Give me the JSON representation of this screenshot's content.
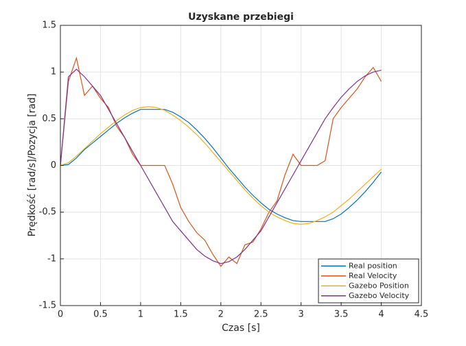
{
  "chart_data": {
    "type": "line",
    "title": "Uzyskane przebiegi",
    "xlabel": "Czas [s]",
    "ylabel": "Prędkość [rad/s]/Pozycja [rad]",
    "x": [
      0,
      0.1,
      0.2,
      0.3,
      0.4,
      0.5,
      0.6,
      0.7,
      0.8,
      0.9,
      1,
      1.1,
      1.2,
      1.3,
      1.4,
      1.5,
      1.6,
      1.7,
      1.8,
      1.9,
      2,
      2.1,
      2.2,
      2.3,
      2.4,
      2.5,
      2.6,
      2.7,
      2.8,
      2.9,
      3,
      3.1,
      3.2,
      3.3,
      3.4,
      3.5,
      3.6,
      3.7,
      3.8,
      3.9,
      4
    ],
    "series": [
      {
        "name": "Real position",
        "color": "#0072bd",
        "values": [
          0,
          0.01,
          0.08,
          0.17,
          0.24,
          0.31,
          0.38,
          0.45,
          0.51,
          0.56,
          0.6,
          0.6,
          0.6,
          0.6,
          0.57,
          0.52,
          0.46,
          0.38,
          0.29,
          0.19,
          0.08,
          -0.03,
          -0.13,
          -0.23,
          -0.32,
          -0.4,
          -0.47,
          -0.52,
          -0.56,
          -0.59,
          -0.6,
          -0.6,
          -0.6,
          -0.6,
          -0.57,
          -0.52,
          -0.45,
          -0.37,
          -0.28,
          -0.18,
          -0.07
        ]
      },
      {
        "name": "Real Velocity",
        "color": "#d95319",
        "values": [
          0,
          0.9,
          1.15,
          0.75,
          0.85,
          0.72,
          0.62,
          0.42,
          0.3,
          0.12,
          0,
          0,
          0,
          0,
          -0.2,
          -0.45,
          -0.6,
          -0.72,
          -0.8,
          -0.95,
          -1.08,
          -0.98,
          -1.05,
          -0.85,
          -0.82,
          -0.68,
          -0.5,
          -0.38,
          -0.1,
          0.12,
          0,
          0,
          0,
          0.05,
          0.5,
          0.62,
          0.72,
          0.82,
          0.95,
          1.05,
          0.9
        ]
      },
      {
        "name": "Gazebo Position",
        "color": "#edb120",
        "values": [
          0,
          0.03,
          0.1,
          0.18,
          0.26,
          0.34,
          0.41,
          0.48,
          0.54,
          0.59,
          0.62,
          0.63,
          0.62,
          0.59,
          0.54,
          0.48,
          0.41,
          0.33,
          0.24,
          0.14,
          0.04,
          -0.06,
          -0.16,
          -0.26,
          -0.35,
          -0.43,
          -0.5,
          -0.55,
          -0.59,
          -0.62,
          -0.63,
          -0.62,
          -0.59,
          -0.55,
          -0.5,
          -0.43,
          -0.36,
          -0.28,
          -0.2,
          -0.12,
          -0.04
        ]
      },
      {
        "name": "Gazebo Velocity",
        "color": "#7e2f8e",
        "values": [
          0,
          0.95,
          1.03,
          0.95,
          0.85,
          0.75,
          0.6,
          0.45,
          0.3,
          0.15,
          0,
          -0.15,
          -0.3,
          -0.45,
          -0.6,
          -0.7,
          -0.8,
          -0.9,
          -0.97,
          -1.02,
          -1.05,
          -1.03,
          -0.98,
          -0.9,
          -0.8,
          -0.7,
          -0.55,
          -0.4,
          -0.25,
          -0.1,
          0.05,
          0.2,
          0.35,
          0.5,
          0.62,
          0.73,
          0.82,
          0.9,
          0.96,
          1,
          1.02
        ]
      }
    ],
    "xlim": [
      0,
      4.5
    ],
    "xticks": [
      0,
      0.5,
      1,
      1.5,
      2,
      2.5,
      3,
      3.5,
      4,
      4.5
    ],
    "ylim": [
      -1.5,
      1.5
    ],
    "yticks": [
      -1.5,
      -1,
      -0.5,
      0,
      0.5,
      1,
      1.5
    ],
    "grid": true,
    "legend": "lower right"
  }
}
